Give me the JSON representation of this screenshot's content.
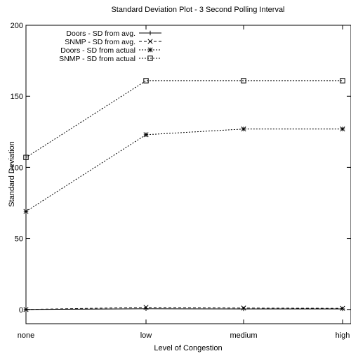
{
  "chart_data": {
    "type": "line",
    "title": "Standard Deviation Plot - 3 Second Polling Interval",
    "xlabel": "Level of Congestion",
    "ylabel": "Standard Deviation",
    "categories": [
      "none",
      "low",
      "medium",
      "high"
    ],
    "ylim": [
      -10,
      200
    ],
    "yticks": [
      0,
      50,
      100,
      150,
      200
    ],
    "grid": false,
    "legend_position": "top-left",
    "series": [
      {
        "name": "Doors - SD from avg.",
        "values": [
          0,
          0.5,
          0.4,
          0.4
        ],
        "marker": "plus",
        "dash": "solid"
      },
      {
        "name": "SNMP - SD from avg.",
        "values": [
          0,
          1.5,
          1.0,
          0.8
        ],
        "marker": "x",
        "dash": "dashed"
      },
      {
        "name": "Doors - SD from actual",
        "values": [
          69,
          123,
          127,
          127
        ],
        "marker": "star",
        "dash": "dotted"
      },
      {
        "name": "SNMP - SD from actual",
        "values": [
          107,
          161,
          161,
          161
        ],
        "marker": "square",
        "dash": "dotted"
      }
    ]
  }
}
